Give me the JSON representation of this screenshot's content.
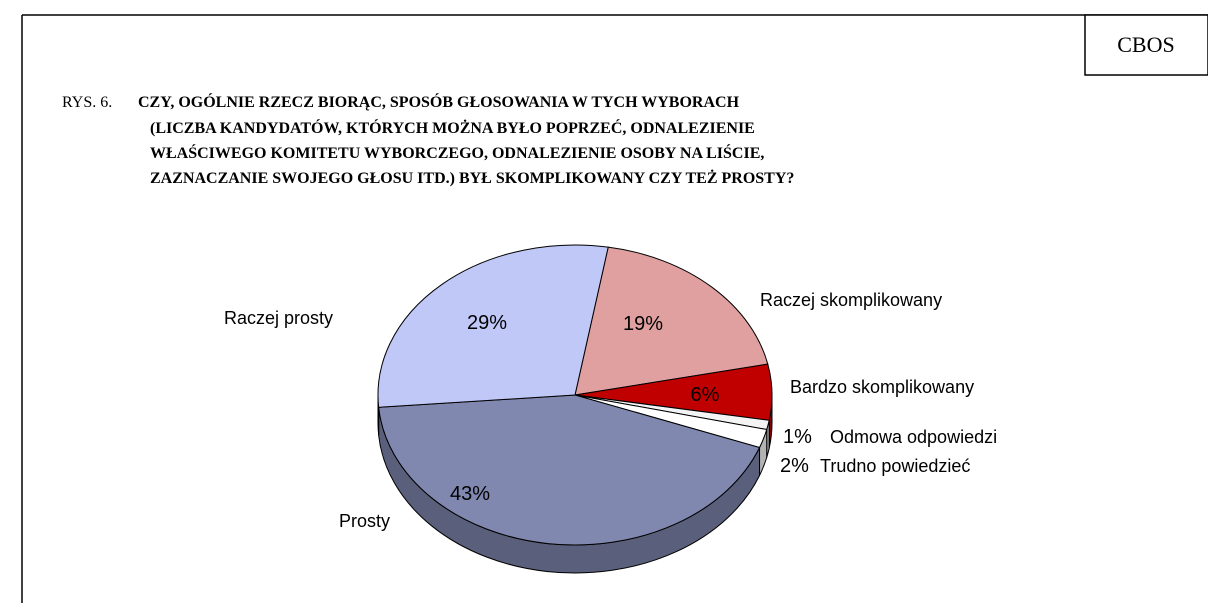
{
  "chart_data": {
    "type": "pie",
    "source": "CBOS",
    "figure_label": "RYS. 6.",
    "title_lines": [
      "CZY, OGÓLNIE RZECZ BIORĄC, SPOSÓB GŁOSOWANIA W TYCH WYBORACH",
      "(LICZBA KANDYDATÓW, KTÓRYCH MOŻNA BYŁO POPRZEĆ, ODNALEZIENIE",
      "WŁAŚCIWEGO KOMITETU WYBORCZEGO, ODNALEZIENIE OSOBY NA LIŚCIE,",
      "ZAZNACZANIE SWOJEGO GŁOSU ITD.) BYŁ SKOMPLIKOWANY CZY TEŻ PROSTY?"
    ],
    "categories": [
      "Raczej skomplikowany",
      "Bardzo skomplikowany",
      "Odmowa odpowiedzi",
      "Trudno powiedzieć",
      "Prosty",
      "Raczej prosty"
    ],
    "values": [
      19,
      6,
      1,
      2,
      43,
      29
    ],
    "value_labels": [
      "19%",
      "6%",
      "1%",
      "2%",
      "43%",
      "29%"
    ],
    "colors": [
      "#e0a0a0",
      "#c00000",
      "#f4f4f4",
      "#ffffff",
      "#8088b0",
      "#c0c8f8"
    ]
  }
}
